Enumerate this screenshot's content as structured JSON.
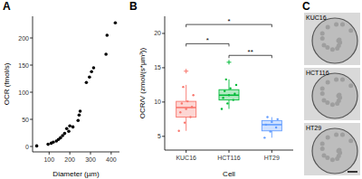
{
  "chart_data": [
    {
      "type": "scatter",
      "title": "A",
      "x_label": "Diameter (µm)",
      "y_label": "OCR (fmol/s)",
      "x": [
        40,
        95,
        110,
        120,
        135,
        145,
        155,
        165,
        175,
        185,
        195,
        200,
        215,
        240,
        245,
        250,
        280,
        295,
        305,
        315,
        375,
        380,
        420
      ],
      "values": [
        1,
        4,
        6,
        8,
        10,
        13,
        16,
        20,
        24,
        33,
        28,
        38,
        36,
        48,
        58,
        65,
        118,
        128,
        138,
        145,
        170,
        205,
        228
      ],
      "color": "#000000",
      "marker": "circle",
      "xlim": [
        20,
        440
      ],
      "ylim": [
        -10,
        240
      ],
      "xticks": [
        100,
        200,
        300,
        400
      ],
      "yticks": [
        0,
        50,
        100,
        150,
        200
      ],
      "grid": false
    },
    {
      "type": "box",
      "title": "B",
      "x_label": "Cell",
      "y_label": "OCR/V (zmol/(s*µm³))",
      "categories": [
        "KUC16",
        "HCT116",
        "HT29"
      ],
      "colors": [
        "#f8766d",
        "#00ba38",
        "#619cff"
      ],
      "boxes": [
        {
          "low": 5.8,
          "q1": 7.8,
          "median": 9.2,
          "q3": 10.1,
          "high": 12.5
        },
        {
          "low": 9.0,
          "q1": 10.3,
          "median": 11.0,
          "q3": 11.8,
          "high": 13.3
        },
        {
          "low": 4.8,
          "q1": 5.8,
          "median": 6.7,
          "q3": 7.3,
          "high": 7.8
        }
      ],
      "points": [
        [
          5.8,
          7.0,
          7.8,
          8.5,
          9.0,
          9.3,
          9.8,
          10.1,
          11.0,
          12.2
        ],
        [
          9.0,
          9.8,
          10.3,
          10.6,
          11.0,
          11.2,
          11.6,
          12.0,
          12.5,
          13.3
        ],
        [
          4.8,
          5.7,
          6.3,
          6.7,
          7.1,
          7.5,
          7.8
        ]
      ],
      "outliers": [
        [
          14.5
        ],
        [
          15.8
        ],
        []
      ],
      "annotations": [
        {
          "label": "*",
          "between": [
            "KUC16",
            "HCT116"
          ],
          "y": 18.5
        },
        {
          "label": "*",
          "between": [
            "KUC16",
            "HT29"
          ],
          "y": 21.3
        },
        {
          "label": "**",
          "between": [
            "HCT116",
            "HT29"
          ],
          "y": 16.8
        }
      ],
      "ylim": [
        3,
        22.5
      ],
      "yticks": [
        5,
        10,
        15,
        20
      ],
      "grid": false
    }
  ],
  "panel_c": {
    "title": "C",
    "images": [
      {
        "label": "KUC16"
      },
      {
        "label": "HCT116"
      },
      {
        "label": "HT29"
      }
    ]
  }
}
